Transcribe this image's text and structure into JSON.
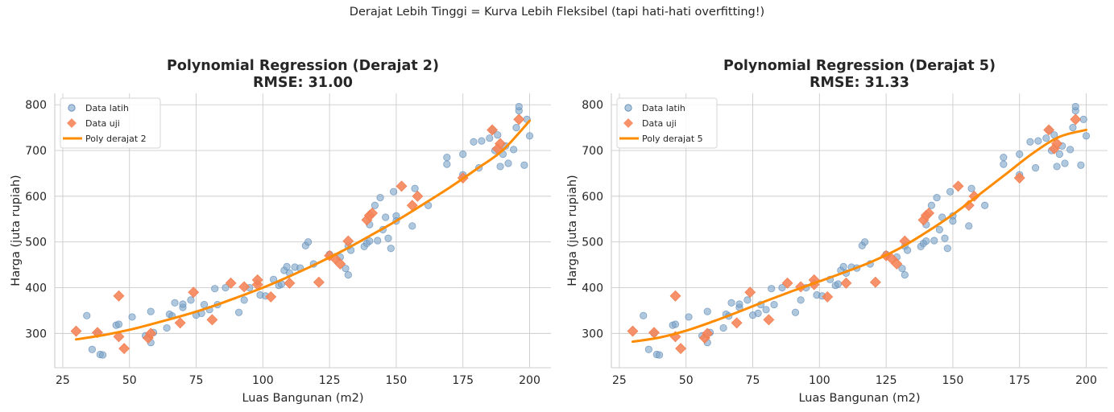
{
  "suptitle": "Derajat Lebih Tinggi = Kurva Lebih Fleksibel (tapi hati-hati overfitting!)",
  "colors": {
    "train": "#7ba3c8",
    "test": "#f5855a",
    "curve": "#ff8c00",
    "grid": "#cccccc",
    "axis": "#cccccc"
  },
  "chart_data": [
    {
      "type": "scatter",
      "title": "Polynomial Regression (Derajat 2)",
      "subtitle": "RMSE: 31.00",
      "xlabel": "Luas Bangunan (m2)",
      "ylabel": "Harga (juta rupiah)",
      "xlim": [
        22,
        208
      ],
      "ylim": [
        225,
        825
      ],
      "xticks": [
        25,
        50,
        75,
        100,
        125,
        150,
        175,
        200
      ],
      "yticks": [
        300,
        400,
        500,
        600,
        700,
        800
      ],
      "grid": true,
      "legend_position": "top-left",
      "series": [
        {
          "name": "Data latih",
          "kind": "points",
          "marker": "circle",
          "x": [
            34,
            36,
            38,
            39,
            40,
            45,
            46,
            51,
            56,
            58,
            58,
            59,
            64,
            65,
            66,
            67,
            70,
            70,
            73,
            75,
            77,
            78,
            80,
            82,
            83,
            86,
            91,
            93,
            95,
            99,
            101,
            104,
            106,
            107,
            108,
            109,
            110,
            112,
            114,
            116,
            117,
            119,
            125,
            129,
            131,
            132,
            132,
            133,
            138,
            139,
            140,
            140,
            142,
            143,
            144,
            145,
            146,
            147,
            148,
            149,
            150,
            150,
            156,
            157,
            162,
            169,
            169,
            175,
            175,
            179,
            181,
            182,
            185,
            186,
            187,
            188,
            189,
            190,
            191,
            192,
            194,
            195,
            196,
            196,
            198,
            199,
            200
          ],
          "y": [
            339,
            265,
            300,
            254,
            253,
            318,
            320,
            336,
            295,
            348,
            280,
            302,
            312,
            342,
            338,
            367,
            357,
            364,
            373,
            340,
            344,
            363,
            352,
            398,
            363,
            400,
            346,
            373,
            400,
            384,
            382,
            418,
            405,
            408,
            438,
            446,
            432,
            445,
            443,
            492,
            500,
            452,
            473,
            467,
            442,
            491,
            428,
            482,
            490,
            497,
            502,
            538,
            580,
            503,
            597,
            527,
            554,
            508,
            486,
            610,
            557,
            546,
            535,
            617,
            580,
            670,
            685,
            692,
            647,
            719,
            662,
            721,
            727,
            745,
            700,
            734,
            665,
            692,
            710,
            672,
            702,
            750,
            787,
            796,
            668,
            768,
            732
          ]
        },
        {
          "name": "Data uji",
          "kind": "points",
          "marker": "diamond",
          "x": [
            30,
            38,
            46,
            46,
            48,
            57,
            58,
            69,
            74,
            81,
            88,
            93,
            98,
            98,
            103,
            110,
            121,
            125,
            127,
            129,
            132,
            139,
            140,
            141,
            152,
            156,
            158,
            175,
            186,
            188,
            189,
            196
          ],
          "y": [
            305,
            302,
            293,
            382,
            267,
            290,
            300,
            323,
            390,
            330,
            410,
            402,
            407,
            417,
            380,
            410,
            412,
            470,
            464,
            452,
            502,
            548,
            558,
            563,
            622,
            580,
            600,
            640,
            745,
            704,
            715,
            768
          ]
        },
        {
          "name": "Poly derajat 2",
          "kind": "line",
          "x": [
            30,
            40,
            50,
            60,
            70,
            80,
            90,
            100,
            110,
            120,
            130,
            140,
            150,
            160,
            170,
            180,
            190,
            200
          ],
          "y": [
            287,
            296,
            308,
            323,
            339,
            357,
            378,
            400,
            425,
            452,
            481,
            513,
            546,
            582,
            619,
            659,
            701,
            765
          ]
        }
      ]
    },
    {
      "type": "scatter",
      "title": "Polynomial Regression (Derajat 5)",
      "subtitle": "RMSE: 31.33",
      "xlabel": "Luas Bangunan (m2)",
      "ylabel": "Harga (juta rupiah)",
      "xlim": [
        22,
        208
      ],
      "ylim": [
        225,
        825
      ],
      "xticks": [
        25,
        50,
        75,
        100,
        125,
        150,
        175,
        200
      ],
      "yticks": [
        300,
        400,
        500,
        600,
        700,
        800
      ],
      "grid": true,
      "legend_position": "top-left",
      "series": [
        {
          "name": "Data latih",
          "kind": "points",
          "marker": "circle",
          "x": [
            34,
            36,
            38,
            39,
            40,
            45,
            46,
            51,
            56,
            58,
            58,
            59,
            64,
            65,
            66,
            67,
            70,
            70,
            73,
            75,
            77,
            78,
            80,
            82,
            83,
            86,
            91,
            93,
            95,
            99,
            101,
            104,
            106,
            107,
            108,
            109,
            110,
            112,
            114,
            116,
            117,
            119,
            125,
            129,
            131,
            132,
            132,
            133,
            138,
            139,
            140,
            140,
            142,
            143,
            144,
            145,
            146,
            147,
            148,
            149,
            150,
            150,
            156,
            157,
            162,
            169,
            169,
            175,
            175,
            179,
            181,
            182,
            185,
            186,
            187,
            188,
            189,
            190,
            191,
            192,
            194,
            195,
            196,
            196,
            198,
            199,
            200
          ],
          "y": [
            339,
            265,
            300,
            254,
            253,
            318,
            320,
            336,
            295,
            348,
            280,
            302,
            312,
            342,
            338,
            367,
            357,
            364,
            373,
            340,
            344,
            363,
            352,
            398,
            363,
            400,
            346,
            373,
            400,
            384,
            382,
            418,
            405,
            408,
            438,
            446,
            432,
            445,
            443,
            492,
            500,
            452,
            473,
            467,
            442,
            491,
            428,
            482,
            490,
            497,
            502,
            538,
            580,
            503,
            597,
            527,
            554,
            508,
            486,
            610,
            557,
            546,
            535,
            617,
            580,
            670,
            685,
            692,
            647,
            719,
            662,
            721,
            727,
            745,
            700,
            734,
            665,
            692,
            710,
            672,
            702,
            750,
            787,
            796,
            668,
            768,
            732
          ]
        },
        {
          "name": "Data uji",
          "kind": "points",
          "marker": "diamond",
          "x": [
            30,
            38,
            46,
            46,
            48,
            57,
            58,
            69,
            74,
            81,
            88,
            93,
            98,
            98,
            103,
            110,
            121,
            125,
            127,
            129,
            132,
            139,
            140,
            141,
            152,
            156,
            158,
            175,
            186,
            188,
            189,
            196
          ],
          "y": [
            305,
            302,
            293,
            382,
            267,
            290,
            300,
            323,
            390,
            330,
            410,
            402,
            407,
            417,
            380,
            410,
            412,
            470,
            464,
            452,
            502,
            548,
            558,
            563,
            622,
            580,
            600,
            640,
            745,
            704,
            715,
            768
          ]
        },
        {
          "name": "Poly derajat 5",
          "kind": "line",
          "x": [
            30,
            40,
            50,
            60,
            70,
            80,
            90,
            100,
            110,
            120,
            130,
            140,
            150,
            160,
            170,
            180,
            190,
            200
          ],
          "y": [
            282,
            291,
            306,
            326,
            348,
            371,
            393,
            414,
            435,
            458,
            486,
            521,
            560,
            604,
            649,
            694,
            730,
            745
          ]
        }
      ]
    }
  ]
}
